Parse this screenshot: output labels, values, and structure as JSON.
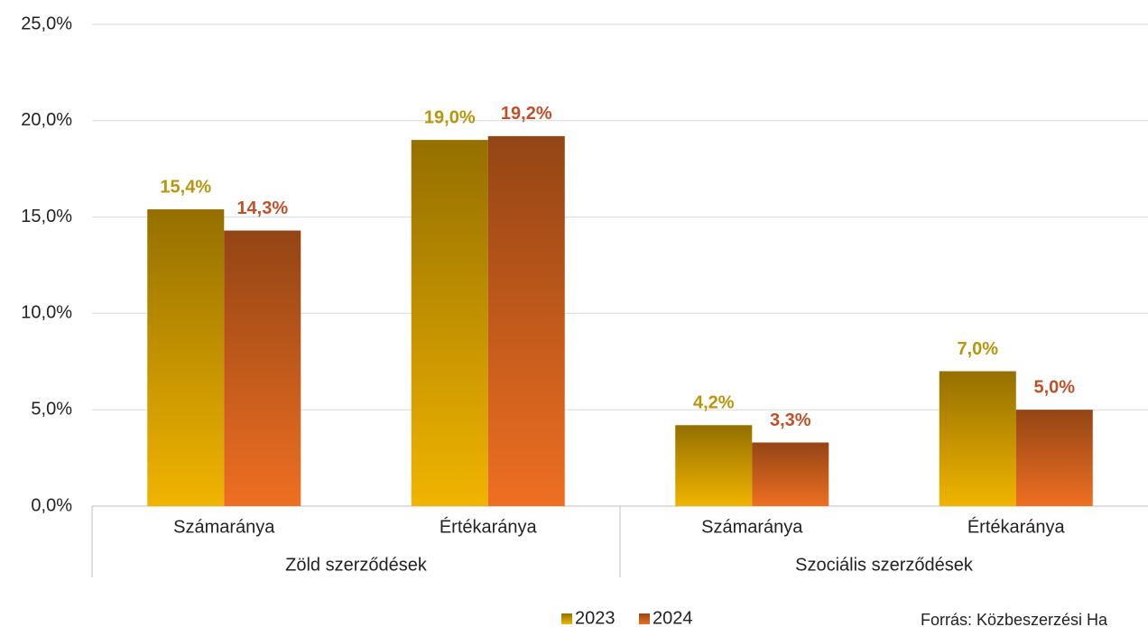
{
  "chart_data": {
    "type": "bar",
    "categories": [
      "Számaránya",
      "Értékaránya",
      "Számaránya",
      "Értékaránya"
    ],
    "groups": [
      {
        "label": "Zöld szerződések",
        "span": 2
      },
      {
        "label": "Szociális szerződések",
        "span": 2
      }
    ],
    "series": [
      {
        "name": "2023",
        "color": "#f0b400",
        "label_color": "#b8960c",
        "values": [
          15.4,
          19.0,
          4.2,
          7.0
        ],
        "value_labels": [
          "15,4%",
          "19,0%",
          "4,2%",
          "7,0%"
        ]
      },
      {
        "name": "2024",
        "color": "#ee6f22",
        "label_color": "#c0502a",
        "values": [
          14.3,
          19.2,
          3.3,
          5.0
        ],
        "value_labels": [
          "14,3%",
          "19,2%",
          "3,3%",
          "5,0%"
        ]
      }
    ],
    "ylim": [
      0,
      25
    ],
    "yticks": [
      {
        "value": 0,
        "label": "0,0%"
      },
      {
        "value": 5,
        "label": "5,0%"
      },
      {
        "value": 10,
        "label": "10,0%"
      },
      {
        "value": 15,
        "label": "15,0%"
      },
      {
        "value": 20,
        "label": "20,0%"
      },
      {
        "value": 25,
        "label": "25,0%"
      }
    ],
    "grid": true,
    "legend": "bottom",
    "source": "Forrás: Közbeszerzési Ha"
  }
}
